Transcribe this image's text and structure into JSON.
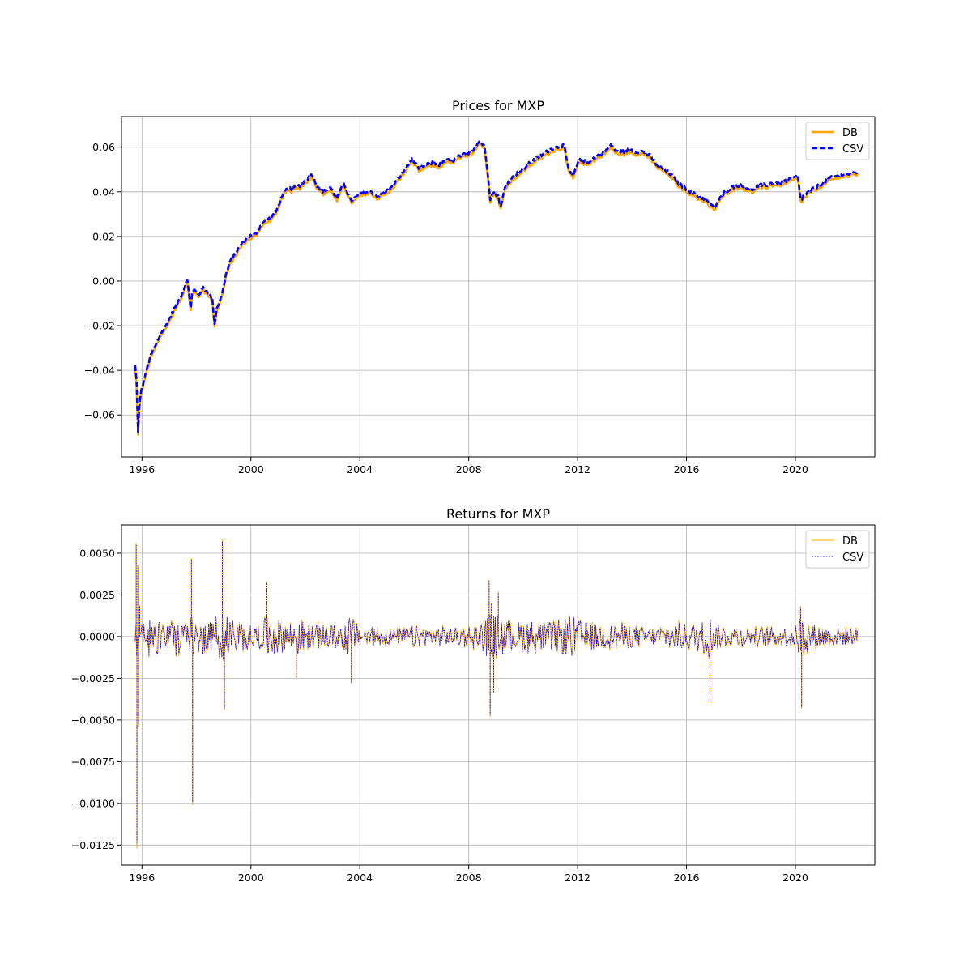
{
  "chart_data": [
    {
      "type": "line",
      "title": "Prices for MXP",
      "xlabel": "",
      "ylabel": "",
      "xlim": [
        "1995-04-01",
        "2022-12-01"
      ],
      "ylim": [
        -0.0788,
        0.0737
      ],
      "xticks": [
        "1996",
        "2000",
        "2004",
        "2008",
        "2012",
        "2016",
        "2020"
      ],
      "yticks": [
        "−0.06",
        "−0.04",
        "−0.02",
        "0.00",
        "0.02",
        "0.04",
        "0.06"
      ],
      "ytick_values": [
        -0.06,
        -0.04,
        -0.02,
        0.0,
        0.02,
        0.04,
        0.06
      ],
      "grid": true,
      "legend_position": "top-right",
      "series": [
        {
          "name": "DB",
          "color": "#ffa500",
          "style": "solid"
        },
        {
          "name": "CSV",
          "color": "#0000ff",
          "style": "dashed"
        }
      ],
      "x": [
        "1995-10-01",
        "1995-10-20",
        "1995-11-10",
        "1995-11-25",
        "1995-12-15",
        "1996-01-15",
        "1996-03-01",
        "1996-05-01",
        "1996-07-01",
        "1996-09-01",
        "1996-11-01",
        "1997-01-01",
        "1997-03-01",
        "1997-05-01",
        "1997-07-01",
        "1997-08-01",
        "1997-09-01",
        "1997-10-15",
        "1997-11-01",
        "1997-12-01",
        "1998-02-01",
        "1998-04-01",
        "1998-06-01",
        "1998-08-01",
        "1998-09-01",
        "1998-10-01",
        "1998-12-01",
        "1999-02-01",
        "1999-04-01",
        "1999-06-01",
        "1999-09-01",
        "1999-12-01",
        "2000-03-01",
        "2000-06-01",
        "2000-09-01",
        "2000-12-01",
        "2001-03-01",
        "2001-05-01",
        "2001-08-01",
        "2001-11-01",
        "2002-02-01",
        "2002-04-01",
        "2002-06-01",
        "2002-09-01",
        "2002-12-01",
        "2003-03-01",
        "2003-06-01",
        "2003-09-01",
        "2003-12-01",
        "2004-03-01",
        "2004-06-01",
        "2004-09-01",
        "2004-12-01",
        "2005-03-01",
        "2005-06-01",
        "2005-09-01",
        "2005-12-01",
        "2006-03-01",
        "2006-06-01",
        "2006-09-01",
        "2006-12-01",
        "2007-03-01",
        "2007-06-01",
        "2007-09-01",
        "2007-12-01",
        "2008-03-01",
        "2008-06-01",
        "2008-08-01",
        "2008-09-15",
        "2008-10-15",
        "2008-12-01",
        "2009-02-01",
        "2009-03-05",
        "2009-05-01",
        "2009-07-01",
        "2009-10-01",
        "2010-01-01",
        "2010-04-01",
        "2010-07-01",
        "2010-10-01",
        "2011-01-01",
        "2011-04-01",
        "2011-07-01",
        "2011-09-01",
        "2011-11-01",
        "2012-02-01",
        "2012-05-01",
        "2012-08-01",
        "2012-11-01",
        "2013-02-01",
        "2013-04-01",
        "2013-06-01",
        "2013-09-01",
        "2013-12-01",
        "2014-03-01",
        "2014-06-01",
        "2014-09-01",
        "2014-12-01",
        "2015-03-01",
        "2015-06-01",
        "2015-09-01",
        "2015-12-01",
        "2016-03-01",
        "2016-06-01",
        "2016-09-01",
        "2016-11-15",
        "2017-01-15",
        "2017-03-01",
        "2017-06-01",
        "2017-09-01",
        "2017-12-01",
        "2018-03-01",
        "2018-06-01",
        "2018-09-01",
        "2018-12-01",
        "2019-03-01",
        "2019-06-01",
        "2019-09-01",
        "2019-12-01",
        "2020-02-01",
        "2020-03-15",
        "2020-04-15",
        "2020-07-01",
        "2020-10-01",
        "2021-01-01",
        "2021-04-01",
        "2021-07-01",
        "2021-10-01",
        "2022-01-01",
        "2022-04-15"
      ],
      "y": [
        -0.038,
        -0.045,
        -0.068,
        -0.057,
        -0.05,
        -0.046,
        -0.04,
        -0.033,
        -0.029,
        -0.024,
        -0.021,
        -0.017,
        -0.013,
        -0.009,
        -0.005,
        -0.002,
        0.0,
        -0.012,
        -0.006,
        -0.004,
        -0.006,
        -0.003,
        -0.005,
        -0.008,
        -0.019,
        -0.012,
        -0.007,
        0.003,
        0.009,
        0.012,
        0.017,
        0.02,
        0.021,
        0.026,
        0.028,
        0.031,
        0.039,
        0.041,
        0.042,
        0.043,
        0.046,
        0.048,
        0.043,
        0.04,
        0.042,
        0.037,
        0.044,
        0.036,
        0.038,
        0.04,
        0.04,
        0.038,
        0.04,
        0.042,
        0.046,
        0.05,
        0.055,
        0.05,
        0.052,
        0.053,
        0.052,
        0.054,
        0.054,
        0.056,
        0.057,
        0.059,
        0.063,
        0.06,
        0.048,
        0.037,
        0.04,
        0.038,
        0.033,
        0.042,
        0.045,
        0.048,
        0.05,
        0.053,
        0.055,
        0.057,
        0.059,
        0.06,
        0.061,
        0.05,
        0.047,
        0.055,
        0.053,
        0.055,
        0.057,
        0.059,
        0.061,
        0.058,
        0.058,
        0.059,
        0.058,
        0.058,
        0.056,
        0.052,
        0.05,
        0.048,
        0.044,
        0.042,
        0.04,
        0.038,
        0.037,
        0.034,
        0.033,
        0.036,
        0.04,
        0.042,
        0.043,
        0.042,
        0.041,
        0.043,
        0.043,
        0.044,
        0.044,
        0.045,
        0.046,
        0.047,
        0.036,
        0.038,
        0.04,
        0.042,
        0.044,
        0.046,
        0.047,
        0.048,
        0.048,
        0.049
      ]
    },
    {
      "type": "line",
      "title": "Returns for MXP",
      "xlabel": "",
      "ylabel": "",
      "xlim": [
        "1995-04-01",
        "2022-12-01"
      ],
      "ylim": [
        -0.0137,
        0.0067
      ],
      "xticks": [
        "1996",
        "2000",
        "2004",
        "2008",
        "2012",
        "2016",
        "2020"
      ],
      "yticks": [
        "−0.0125",
        "−0.0100",
        "−0.0075",
        "−0.0050",
        "−0.0025",
        "0.0000",
        "0.0025",
        "0.0050"
      ],
      "ytick_values": [
        -0.0125,
        -0.01,
        -0.0075,
        -0.005,
        -0.0025,
        0.0,
        0.0025,
        0.005
      ],
      "grid": true,
      "legend_position": "top-right",
      "series": [
        {
          "name": "DB",
          "color": "#ffa500",
          "style": "solid"
        },
        {
          "name": "CSV",
          "color": "#0000ff",
          "style": "dashed"
        }
      ],
      "x": [
        "1995-10-01",
        "1995-10-15",
        "1995-10-25",
        "1995-11-05",
        "1995-11-15",
        "1995-12-01",
        "1996-01-01",
        "1996-04-01",
        "1996-07-01",
        "1996-10-01",
        "1997-01-01",
        "1997-04-01",
        "1997-07-01",
        "1997-10-25",
        "1997-11-10",
        "1998-01-01",
        "1998-04-01",
        "1998-07-01",
        "1998-10-01",
        "1998-12-15",
        "1999-01-10",
        "1999-04-01",
        "1999-07-01",
        "1999-10-01",
        "2000-01-01",
        "2000-06-01",
        "2000-08-01",
        "2001-01-01",
        "2001-06-01",
        "2001-09-01",
        "2002-01-01",
        "2002-06-01",
        "2002-12-01",
        "2003-06-01",
        "2003-09-10",
        "2004-01-01",
        "2004-06-01",
        "2005-01-01",
        "2005-06-01",
        "2006-01-01",
        "2006-06-01",
        "2007-01-01",
        "2007-06-01",
        "2008-01-01",
        "2008-06-01",
        "2008-10-01",
        "2008-10-15",
        "2008-11-01",
        "2008-12-01",
        "2009-02-01",
        "2009-05-01",
        "2009-09-01",
        "2010-01-01",
        "2010-06-01",
        "2011-01-01",
        "2011-06-01",
        "2011-10-01",
        "2012-03-01",
        "2012-09-01",
        "2013-03-01",
        "2013-09-01",
        "2014-03-01",
        "2014-09-01",
        "2015-03-01",
        "2015-09-01",
        "2016-03-01",
        "2016-09-01",
        "2016-11-10",
        "2017-01-01",
        "2017-06-01",
        "2018-01-01",
        "2018-06-01",
        "2019-01-01",
        "2019-06-01",
        "2020-01-01",
        "2020-03-10",
        "2020-03-25",
        "2020-06-01",
        "2021-01-01",
        "2021-06-01",
        "2022-01-01",
        "2022-04-15"
      ],
      "y": [
        0.0005,
        0.0056,
        -0.0127,
        0.0043,
        -0.0054,
        0.0019,
        -0.0012,
        0.0016,
        -0.0013,
        0.0011,
        -0.0009,
        0.0014,
        -0.0011,
        0.0047,
        -0.0101,
        0.0012,
        -0.0013,
        0.001,
        -0.0016,
        0.0058,
        -0.0044,
        0.0013,
        -0.001,
        0.0011,
        -0.0008,
        0.0009,
        0.0033,
        -0.0012,
        0.001,
        -0.0025,
        0.0009,
        -0.0009,
        0.0008,
        -0.001,
        -0.0028,
        0.0006,
        -0.0007,
        0.0006,
        -0.0005,
        0.0008,
        -0.0006,
        0.0007,
        -0.0006,
        0.0008,
        -0.0009,
        0.0034,
        -0.0048,
        0.002,
        -0.0034,
        0.0027,
        -0.0012,
        0.001,
        -0.0012,
        0.0012,
        -0.001,
        0.0013,
        -0.0015,
        0.0011,
        -0.0009,
        0.0008,
        -0.001,
        0.0007,
        -0.0006,
        0.0008,
        -0.001,
        0.0009,
        -0.0012,
        -0.004,
        0.0009,
        -0.0008,
        0.0007,
        -0.0006,
        0.0007,
        -0.0006,
        0.0008,
        0.0018,
        -0.0043,
        0.0011,
        -0.0007,
        0.0007,
        -0.0006,
        0.0005
      ]
    }
  ]
}
